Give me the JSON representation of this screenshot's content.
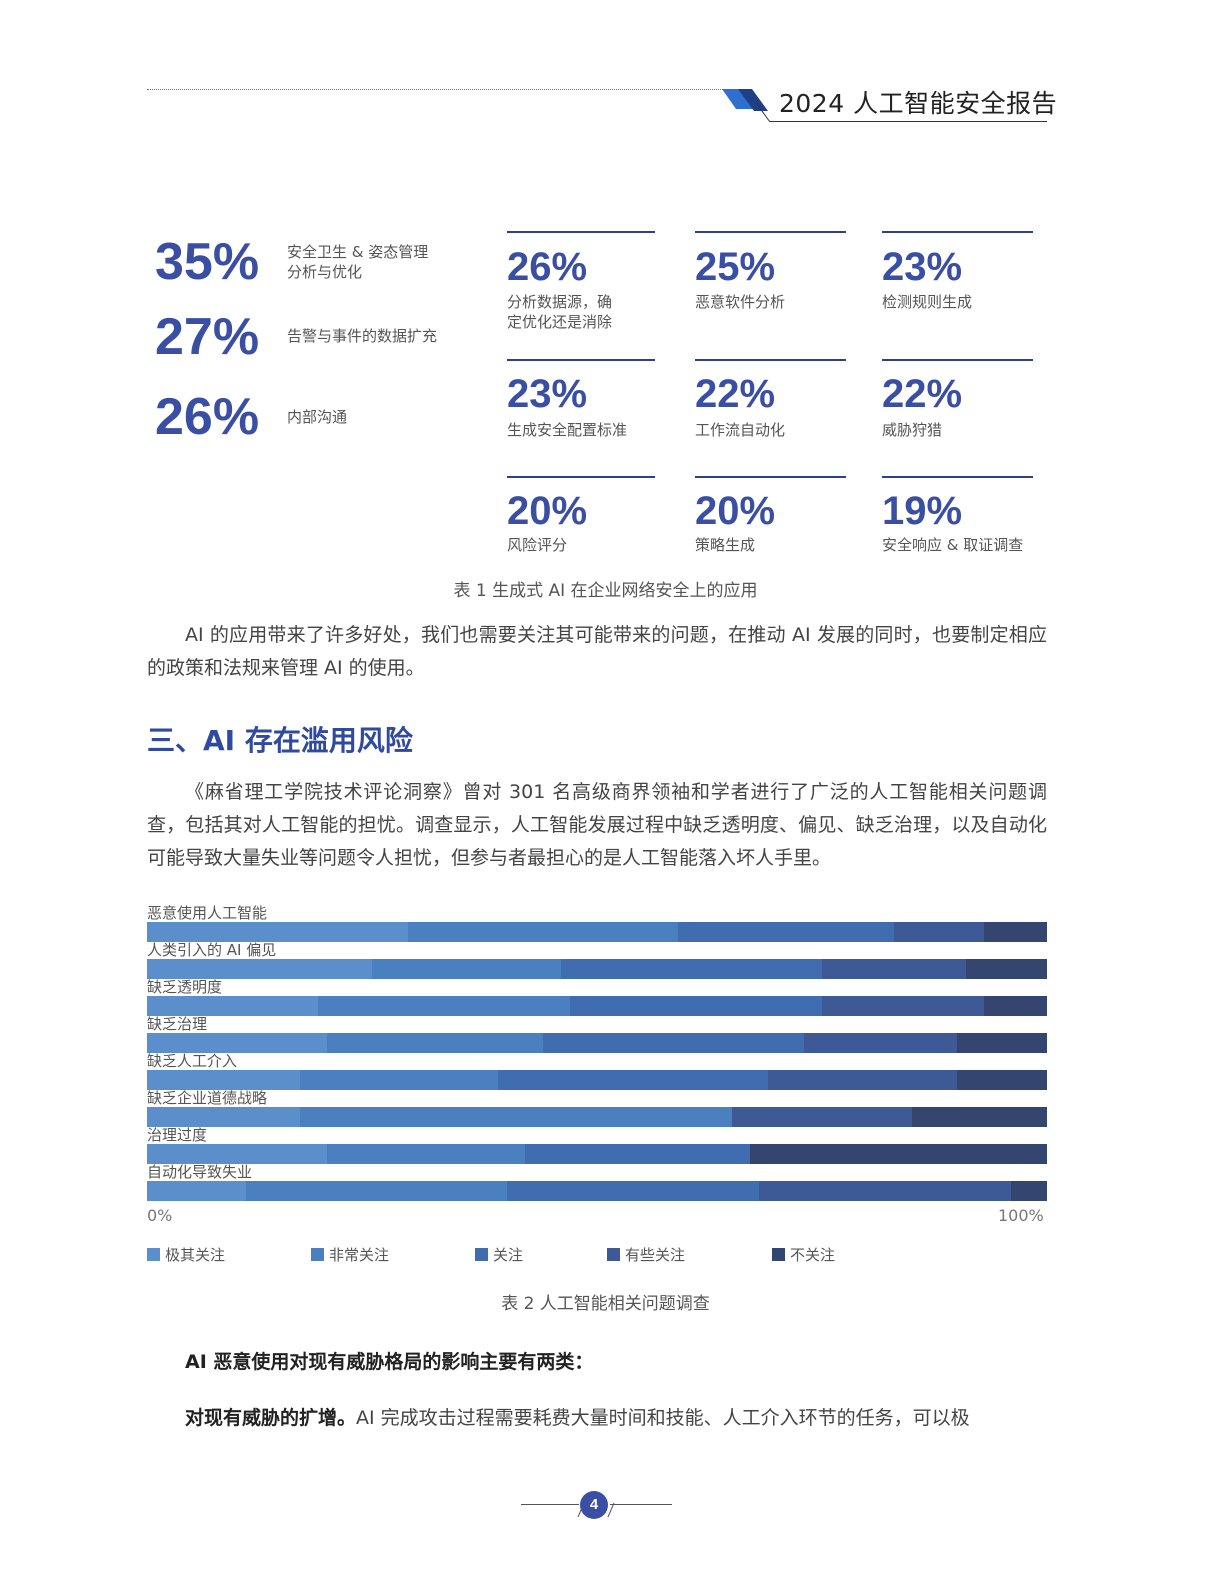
{
  "header": {
    "title": "2024 人工智能安全报告"
  },
  "stats_left": [
    {
      "pct": "35%",
      "label_lines": [
        "安全卫生 & 姿态管理",
        "分析与优化"
      ]
    },
    {
      "pct": "27%",
      "label_lines": [
        "告警与事件的数据扩充"
      ]
    },
    {
      "pct": "26%",
      "label_lines": [
        "内部沟通"
      ]
    }
  ],
  "stats_grid": [
    {
      "pct": "26%",
      "label_lines": [
        "分析数据源，确",
        "定优化还是消除"
      ]
    },
    {
      "pct": "25%",
      "label_lines": [
        "恶意软件分析"
      ]
    },
    {
      "pct": "23%",
      "label_lines": [
        "检测规则生成"
      ]
    },
    {
      "pct": "23%",
      "label_lines": [
        "生成安全配置标准"
      ]
    },
    {
      "pct": "22%",
      "label_lines": [
        "工作流自动化"
      ]
    },
    {
      "pct": "22%",
      "label_lines": [
        "威胁狩猎"
      ]
    },
    {
      "pct": "20%",
      "label_lines": [
        "风险评分"
      ]
    },
    {
      "pct": "20%",
      "label_lines": [
        "策略生成"
      ]
    },
    {
      "pct": "19%",
      "label_lines": [
        "安全响应 & 取证调查"
      ]
    }
  ],
  "table1_caption": "表 1 生成式 AI 在企业网络安全上的应用",
  "para1": "AI 的应用带来了许多好处，我们也需要关注其可能带来的问题，在推动 AI 发展的同时，也要制定相应的政策和法规来管理 AI 的使用。",
  "section3_title": "三、AI 存在滥用风险",
  "para2": "《麻省理工学院技术评论洞察》曾对 301 名高级商界领袖和学者进行了广泛的人工智能相关问题调查，包括其对人工智能的担忧。调查显示，人工智能发展过程中缺乏透明度、偏见、缺乏治理，以及自动化可能导致大量失业等问题令人担忧，但参与者最担心的是人工智能落入坏人手里。",
  "chart_data": {
    "type": "bar",
    "orientation": "horizontal",
    "stacked": true,
    "categories": [
      "恶意使用人工智能",
      "人类引入的 AI 偏见",
      "缺乏透明度",
      "缺乏治理",
      "缺乏人工介入",
      "缺乏企业道德战略",
      "治理过度",
      "自动化导致失业"
    ],
    "series": [
      {
        "name": "极其关注",
        "color": "#5b8fcb",
        "values": [
          29,
          25,
          19,
          20,
          17,
          17,
          20,
          11
        ]
      },
      {
        "name": "非常关注",
        "color": "#4a7fc0",
        "values": [
          30,
          21,
          28,
          24,
          22,
          48,
          22,
          29
        ]
      },
      {
        "name": "关注",
        "color": "#3f6daf",
        "values": [
          24,
          29,
          28,
          29,
          30,
          0,
          25,
          28
        ]
      },
      {
        "name": "有些关注",
        "color": "#3d5a97",
        "values": [
          10,
          16,
          18,
          17,
          21,
          20,
          0,
          28
        ]
      },
      {
        "name": "不关注",
        "color": "#34466f",
        "values": [
          7,
          9,
          7,
          10,
          10,
          15,
          33,
          4
        ]
      }
    ],
    "xlim": [
      0,
      100
    ],
    "xtick_labels": [
      "0%",
      "100%"
    ],
    "legend_position": "bottom"
  },
  "table2_caption": "表 2 人工智能相关问题调查",
  "para3_bold": "AI 恶意使用对现有威胁格局的影响主要有两类：",
  "para4_bold": "对现有威胁的扩增。",
  "para4_rest": "AI 完成攻击过程需要耗费大量时间和技能、人工介入环节的任务，可以极",
  "footer": {
    "page_number": "4"
  }
}
